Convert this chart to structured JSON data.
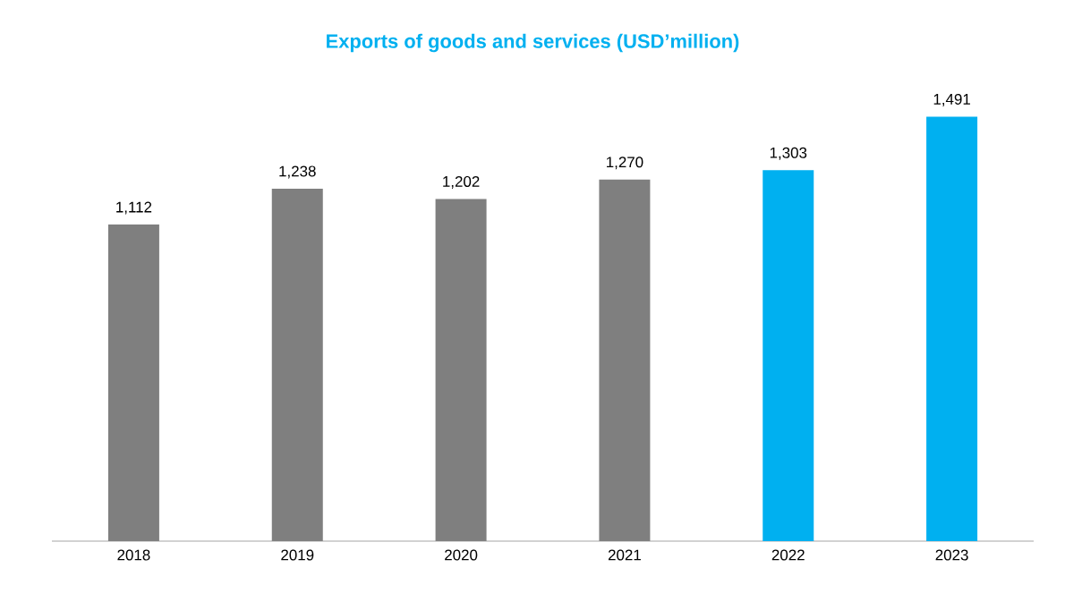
{
  "chart_data": {
    "type": "bar",
    "title": "Exports of goods and services (USD’million)",
    "categories": [
      "2018",
      "2019",
      "2020",
      "2021",
      "2022",
      "2023"
    ],
    "values": [
      1112,
      1238,
      1202,
      1270,
      1303,
      1491
    ],
    "colors": [
      "#7f7f7f",
      "#7f7f7f",
      "#7f7f7f",
      "#7f7f7f",
      "#00b0f0",
      "#00b0f0"
    ],
    "value_labels": [
      "1,112",
      "1,238",
      "1,202",
      "1,270",
      "1,303",
      "1,491"
    ]
  }
}
